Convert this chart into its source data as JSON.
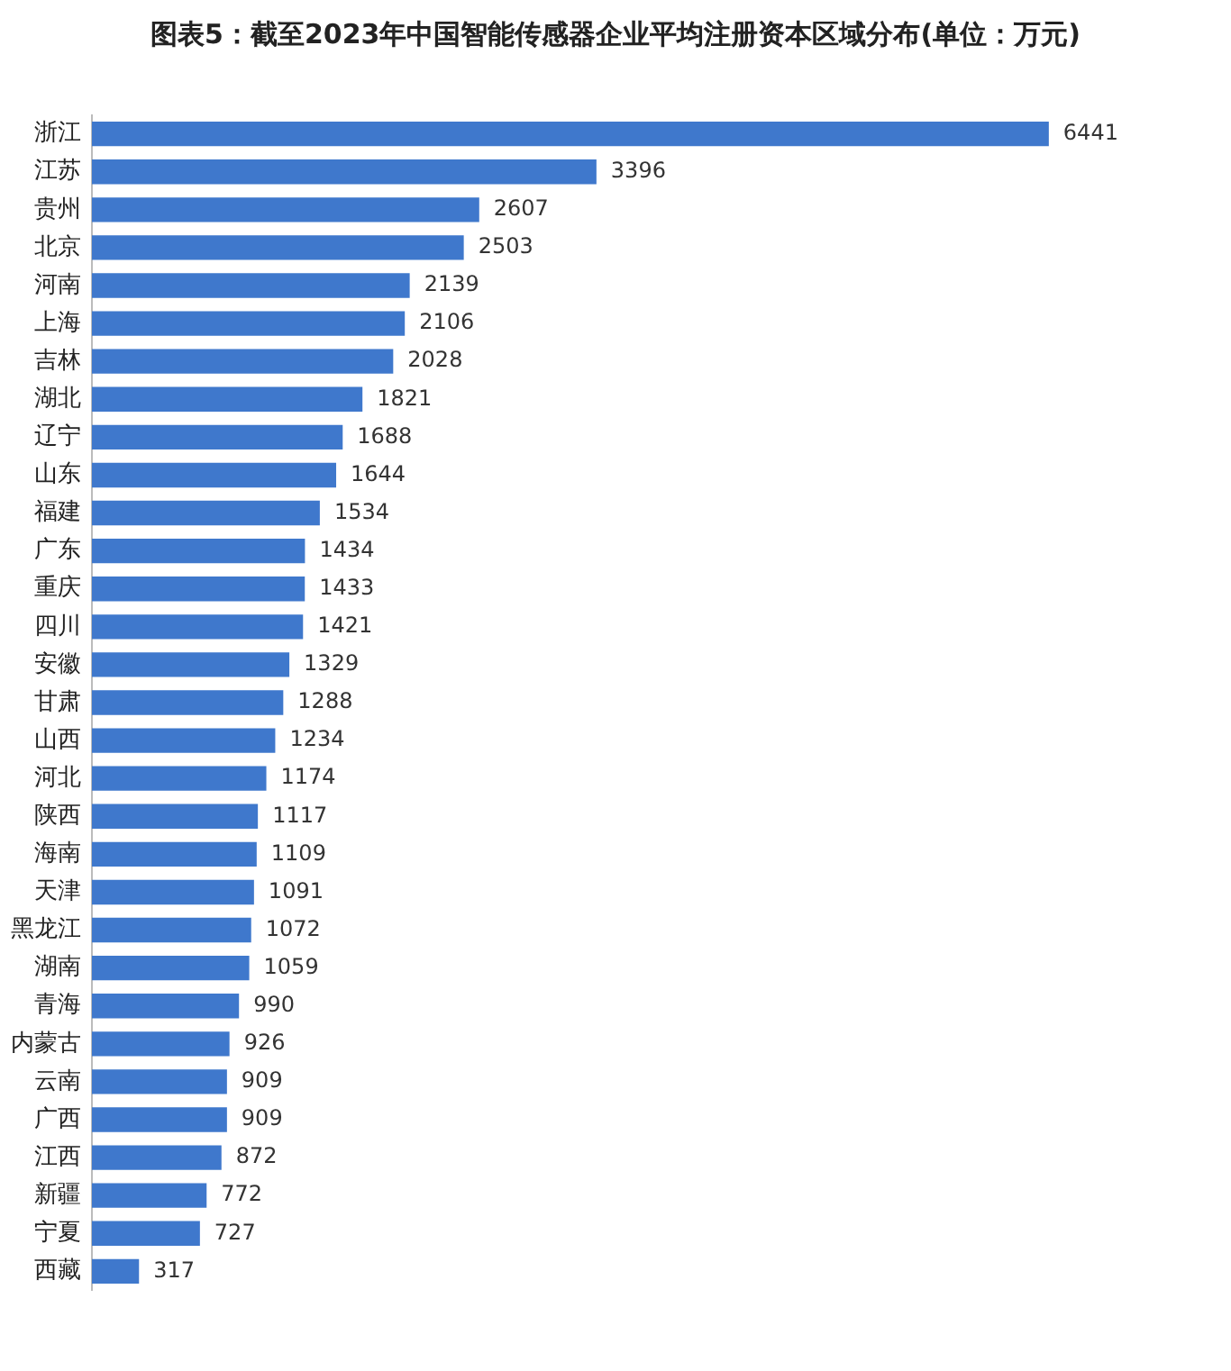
{
  "chart_data": {
    "type": "bar",
    "orientation": "horizontal",
    "title": "图表5：截至2023年中国智能传感器企业平均注册资本区域分布(单位：万元)",
    "categories": [
      "浙江",
      "江苏",
      "贵州",
      "北京",
      "河南",
      "上海",
      "吉林",
      "湖北",
      "辽宁",
      "山东",
      "福建",
      "广东",
      "重庆",
      "四川",
      "安徽",
      "甘肃",
      "山西",
      "河北",
      "陕西",
      "海南",
      "天津",
      "黑龙江",
      "湖南",
      "青海",
      "内蒙古",
      "云南",
      "广西",
      "江西",
      "新疆",
      "宁夏",
      "西藏"
    ],
    "values": [
      6441,
      3396,
      2607,
      2503,
      2139,
      2106,
      2028,
      1821,
      1688,
      1644,
      1534,
      1434,
      1433,
      1421,
      1329,
      1288,
      1234,
      1174,
      1117,
      1109,
      1091,
      1072,
      1059,
      990,
      926,
      909,
      909,
      872,
      772,
      727,
      317
    ],
    "color": "#3f78cc",
    "data_labels": true,
    "grid": false,
    "legend": false
  }
}
